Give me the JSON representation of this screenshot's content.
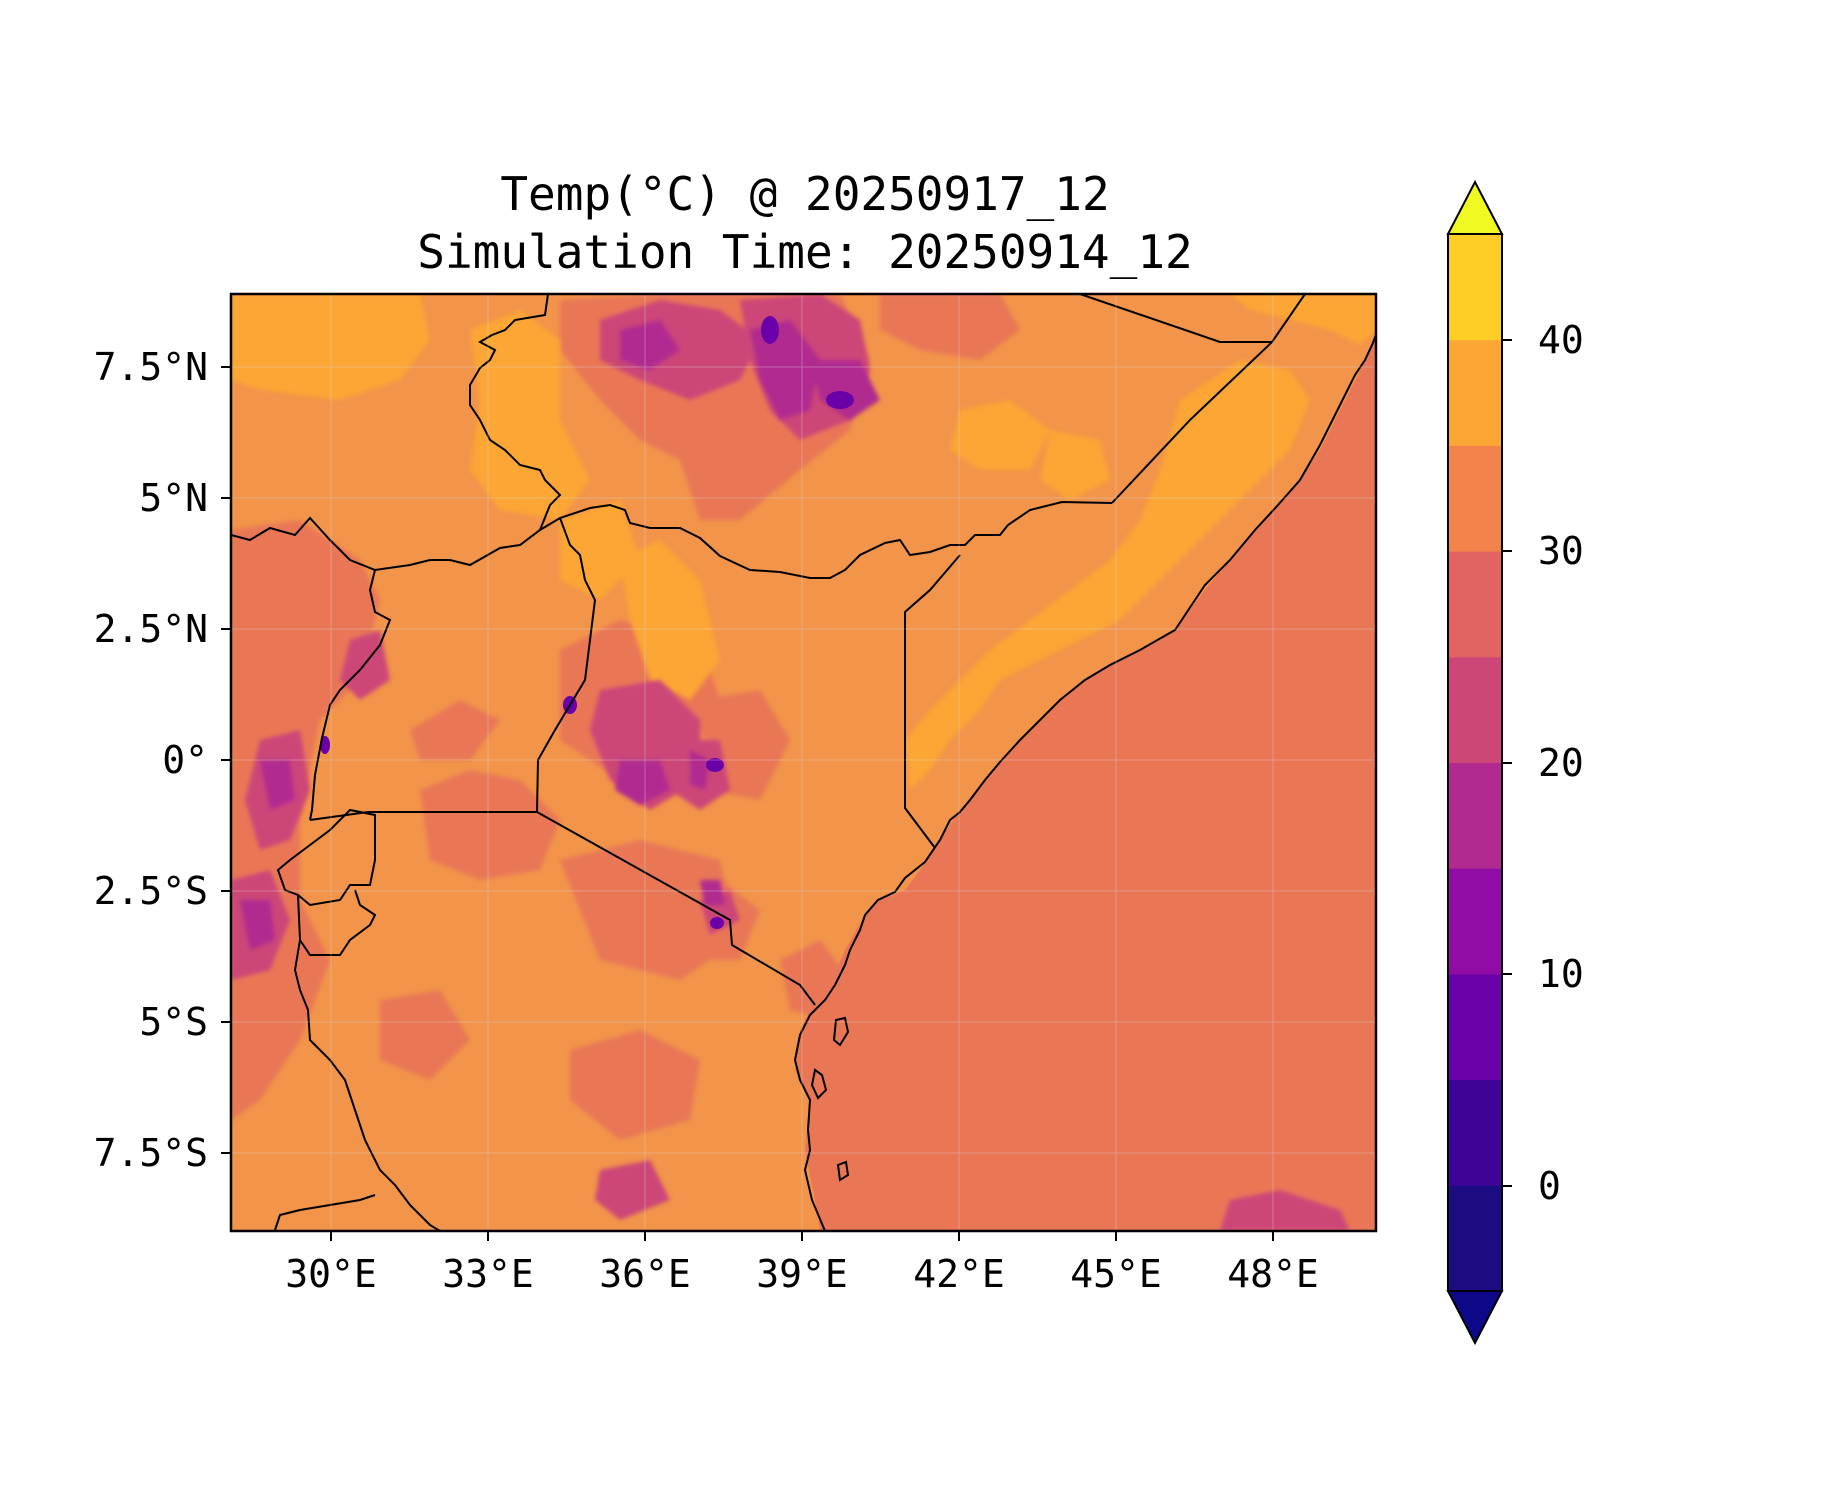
{
  "title_line1": "Temp(°C) @ 20250917_12",
  "title_line2": "Simulation Time: 20250914_12",
  "lat_labels": [
    "7.5°N",
    "5°N",
    "2.5°N",
    "0°",
    "2.5°S",
    "5°S",
    "7.5°S"
  ],
  "lon_labels": [
    "30°E",
    "33°E",
    "36°E",
    "39°E",
    "42°E",
    "45°E",
    "48°E"
  ],
  "colorbar": {
    "tick_labels": [
      "40",
      "30",
      "20",
      "10",
      "0"
    ],
    "levels": [
      -5,
      0,
      5,
      10,
      15,
      20,
      25,
      30,
      35,
      40,
      45
    ],
    "colors": [
      "#1b0c81",
      "#3d0495",
      "#6a00a8",
      "#8f0da4",
      "#b12a90",
      "#cc4778",
      "#e16462",
      "#f2844b",
      "#fca636",
      "#fcce25"
    ],
    "under_color": "#0d0887",
    "over_color": "#f0f921",
    "extend": "both"
  },
  "map": {
    "lon_range": [
      27.5,
      49.5
    ],
    "lat_range": [
      -9.0,
      9.0
    ],
    "ocean_temp_band": "25-30",
    "dominant_land_band": "30-35",
    "cool_highlands_band": "10-25"
  }
}
